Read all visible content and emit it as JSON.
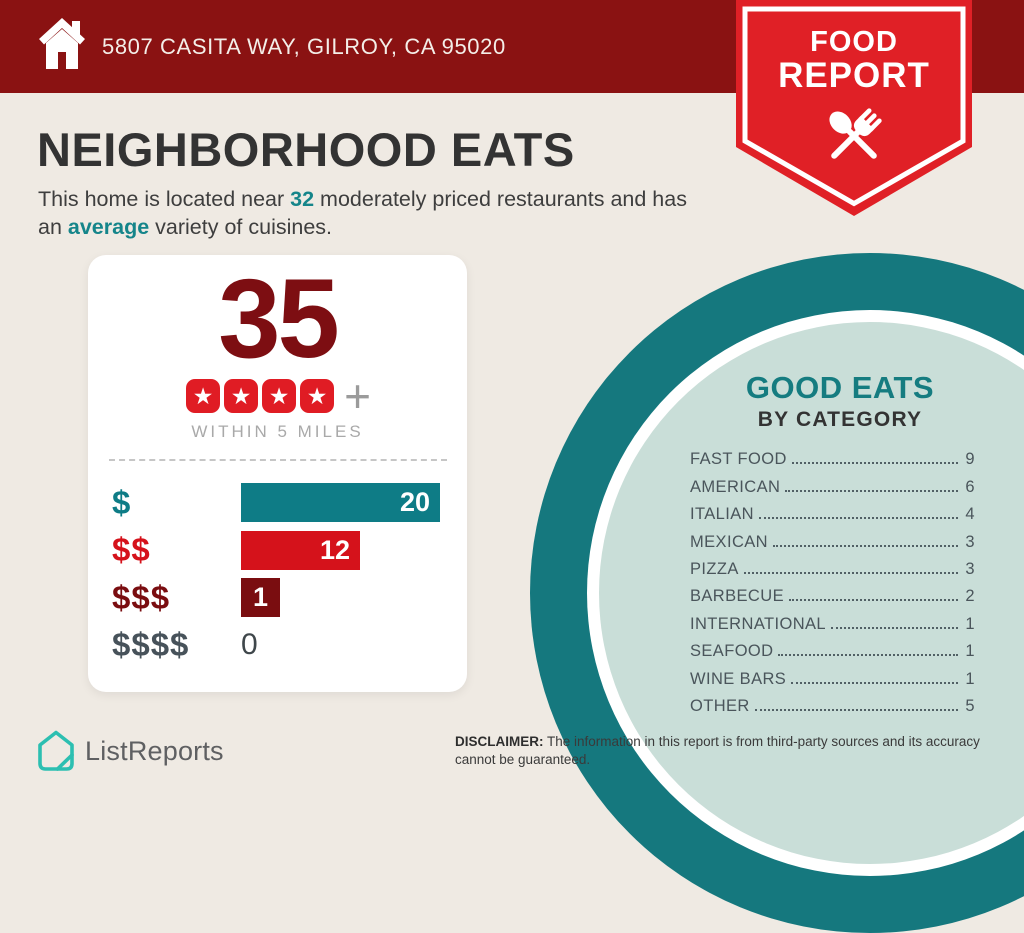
{
  "header": {
    "address": "5807 CASITA WAY, GILROY, CA 95020"
  },
  "ribbon": {
    "line1": "FOOD",
    "line2": "REPORT"
  },
  "intro": {
    "title": "NEIGHBORHOOD EATS",
    "sub_pre": "This home is located near ",
    "count": "32",
    "sub_mid": " moderately priced restaurants and has an ",
    "variety": "average",
    "sub_post": " variety of cuisines."
  },
  "summary_card": {
    "total": "35",
    "rating_stars": 4,
    "plus_suffix": "+",
    "caption": "WITHIN 5 MILES"
  },
  "chart_data": [
    {
      "type": "bar",
      "orientation": "horizontal",
      "categories": [
        "$",
        "$$",
        "$$$",
        "$$$$"
      ],
      "values": [
        20,
        12,
        1,
        0
      ],
      "xlim": [
        0,
        20
      ],
      "value_labels_shown": true,
      "bar_colors": [
        "#0E7C86",
        "#D5121B",
        "#7A0D10",
        null
      ],
      "category_colors": [
        "#0E7C86",
        "#D5121B",
        "#7A0D10",
        "#47525A"
      ],
      "title": "",
      "xlabel": "",
      "ylabel": ""
    },
    {
      "type": "table",
      "title": "GOOD EATS",
      "subtitle": "BY CATEGORY",
      "rows": [
        {
          "label": "FAST FOOD",
          "value": 9
        },
        {
          "label": "AMERICAN",
          "value": 6
        },
        {
          "label": "ITALIAN",
          "value": 4
        },
        {
          "label": "MEXICAN",
          "value": 3
        },
        {
          "label": "PIZZA",
          "value": 3
        },
        {
          "label": "BARBECUE",
          "value": 2
        },
        {
          "label": "INTERNATIONAL",
          "value": 1
        },
        {
          "label": "SEAFOOD",
          "value": 1
        },
        {
          "label": "WINE BARS",
          "value": 1
        },
        {
          "label": "OTHER",
          "value": 5
        }
      ]
    }
  ],
  "footer": {
    "brand": "ListReports",
    "disclaimer_label": "DISCLAIMER:",
    "disclaimer_text": " The information in this report is from third-party sources and its accuracy cannot be guaranteed."
  },
  "colors": {
    "header_bg": "#8A1212",
    "ribbon_red": "#E02026",
    "accent_teal": "#0E7C86",
    "dark_red": "#7D0E12",
    "bright_red": "#D5121B",
    "circle_ring": "#15787E",
    "circle_fill": "#C9DED8",
    "background": "#EFEAE3",
    "star_red": "#E01C24"
  }
}
